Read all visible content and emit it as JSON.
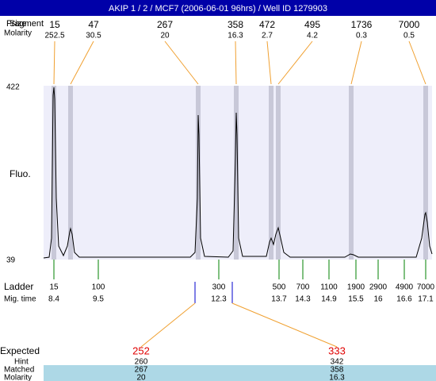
{
  "header": {
    "title": "AKIP 1 / 2 / MCF7 (2006-06-01 96hrs) / Well ID 1279903"
  },
  "top": {
    "fragment_label": "Fragment",
    "size_label": "Size",
    "molarity_label": "Molarity",
    "peaks": [
      {
        "size": "15",
        "molarity": "252.5"
      },
      {
        "size": "47",
        "molarity": "30.5"
      },
      {
        "size": "267",
        "molarity": "20"
      },
      {
        "size": "358",
        "molarity": "16.3"
      },
      {
        "size": "472",
        "molarity": "2.7"
      },
      {
        "size": "495",
        "molarity": "4.2"
      },
      {
        "size": "1736",
        "molarity": "0.3"
      },
      {
        "size": "7000",
        "molarity": "0.5"
      }
    ]
  },
  "axis": {
    "y_max": "422",
    "y_min": "39",
    "y_label": "Fluo."
  },
  "ladder": {
    "label": "Ladder",
    "time_label": "Mig. time",
    "items": [
      {
        "size": "15",
        "time": "8.4"
      },
      {
        "size": "100",
        "time": "9.5"
      },
      {
        "size": "300",
        "time": "12.3"
      },
      {
        "size": "500",
        "time": "13.7"
      },
      {
        "size": "700",
        "time": "14.3"
      },
      {
        "size": "1100",
        "time": "14.9"
      },
      {
        "size": "1900",
        "time": "15.5"
      },
      {
        "size": "2900",
        "time": "16"
      },
      {
        "size": "4900",
        "time": "16.6"
      },
      {
        "size": "7000",
        "time": "17.1"
      }
    ]
  },
  "table": {
    "expected_label": "Expected",
    "hint_label": "Hint",
    "matched_label": "Matched",
    "molarity_label": "Molarity",
    "columns": [
      {
        "expected": "252",
        "hint": "260",
        "matched": "267",
        "molarity": "20"
      },
      {
        "expected": "333",
        "hint": "342",
        "matched": "358",
        "molarity": "16.3"
      }
    ]
  }
}
